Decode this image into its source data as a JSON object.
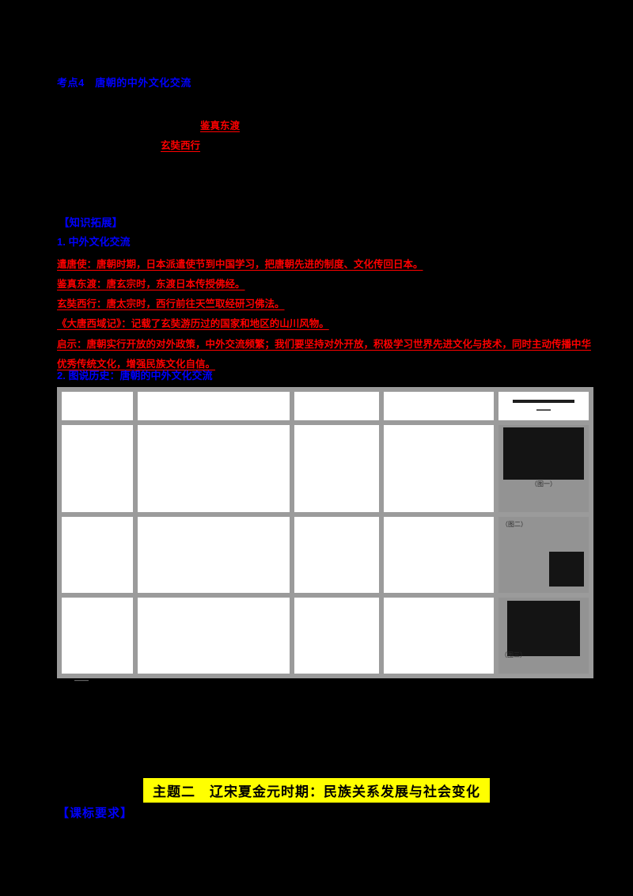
{
  "colors": {
    "page_bg": "#000000",
    "accent_blue": "#0000ff",
    "accent_red": "#ff0000",
    "highlight_yellow": "#ffff00",
    "table_border_gray": "#9b9b9b",
    "image_column_gray": "#939393"
  },
  "top": {
    "heading": "考点4　唐朝的中外文化交流",
    "diagram": {
      "label1": "鉴真东渡",
      "label2": "玄奘西行"
    }
  },
  "section": {
    "header": "【知识拓展】",
    "item1_heading": "1. 中外文化交流",
    "red_lines": [
      "遣唐使：唐朝时期，日本派遣使节到中国学习，把唐朝先进的制度、文化传回日本。",
      "鉴真东渡：唐玄宗时，东渡日本传授佛经。",
      "玄奘西行：唐太宗时，西行前往天竺取经研习佛法。",
      "《大唐西域记》：记载了玄奘游历过的国家和地区的山川风物。",
      "启示：唐朝实行开放的对外政策，中外交流频繁；我们要坚持对外开放，积极学习世界先进文化与技术，同时主动传播中华优秀传统文化，增强民族文化自信。"
    ],
    "item2_heading": "2. 图说历史：唐朝的中外文化交流"
  },
  "table": {
    "rows": [
      [
        "",
        "",
        "",
        ""
      ],
      [
        "",
        "",
        "",
        ""
      ],
      [
        "",
        "",
        "",
        ""
      ],
      [
        "",
        "",
        "",
        ""
      ]
    ],
    "image_captions": [
      "",
      "（图一）",
      "（图二）",
      "（图三）"
    ],
    "footnote": "——"
  },
  "theme": {
    "title": "主题二　辽宋夏金元时期：民族关系发展与社会变化"
  },
  "bottom": {
    "heading": "【课标要求】"
  }
}
